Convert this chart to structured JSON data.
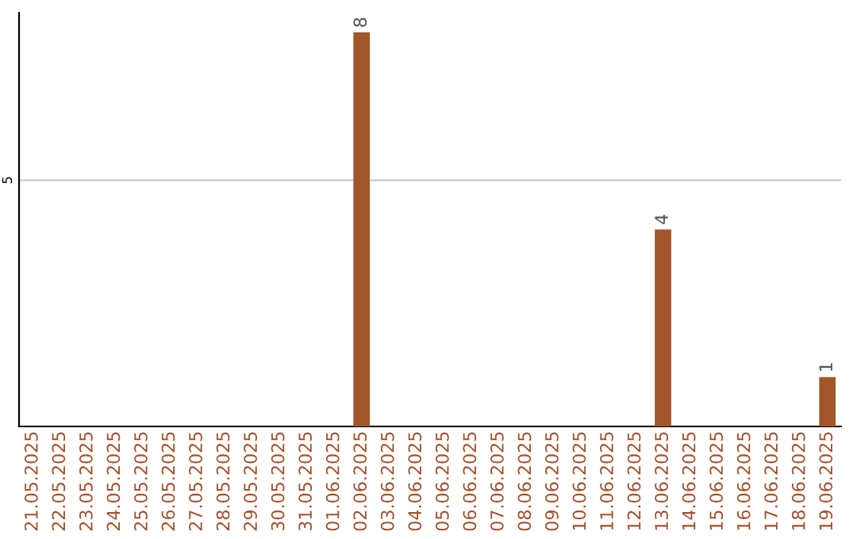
{
  "chart_data": {
    "type": "bar",
    "categories": [
      "21.05.2025",
      "22.05.2025",
      "23.05.2025",
      "24.05.2025",
      "25.05.2025",
      "26.05.2025",
      "27.05.2025",
      "28.05.2025",
      "29.05.2025",
      "30.05.2025",
      "31.05.2025",
      "01.06.2025",
      "02.06.2025",
      "03.06.2025",
      "04.06.2025",
      "05.06.2025",
      "06.06.2025",
      "07.06.2025",
      "08.06.2025",
      "09.06.2025",
      "10.06.2025",
      "11.06.2025",
      "12.06.2025",
      "13.06.2025",
      "14.06.2025",
      "15.06.2025",
      "16.06.2025",
      "17.06.2025",
      "18.06.2025",
      "19.06.2025"
    ],
    "values": [
      null,
      null,
      null,
      null,
      null,
      null,
      null,
      null,
      null,
      null,
      null,
      null,
      8,
      null,
      null,
      null,
      null,
      null,
      null,
      null,
      null,
      null,
      null,
      4,
      null,
      null,
      null,
      null,
      null,
      1
    ],
    "data_labels": true,
    "color": "#a0562a",
    "ylim": [
      0,
      8.4
    ],
    "yticks": [
      5
    ],
    "grid": "y"
  }
}
